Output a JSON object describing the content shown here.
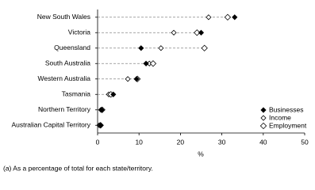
{
  "chart_data": {
    "type": "dot",
    "categories": [
      "New South Wales",
      "Victoria",
      "Queensland",
      "South Australia",
      "Western Australia",
      "Tasmania",
      "Northern Territory",
      "Australian Capital Territory"
    ],
    "series": [
      {
        "name": "Businesses",
        "color": "#000000",
        "marker": "diamond-filled",
        "values": [
          33.1,
          25,
          10.5,
          11.7,
          9.4,
          3.8,
          1,
          0.8
        ]
      },
      {
        "name": "Income",
        "color": "#000000",
        "marker": "diamond-open",
        "values": [
          26.8,
          18.4,
          15.3,
          12.5,
          7.3,
          2.7,
          0.8,
          0.4
        ]
      },
      {
        "name": "Employment",
        "color": "#000000",
        "marker": "diamond-open-large",
        "values": [
          31.4,
          24,
          25.8,
          13.4,
          9.6,
          3.2,
          1.1,
          0.7
        ]
      }
    ],
    "xlim": [
      0,
      50
    ],
    "xticks": [
      0,
      10,
      20,
      30,
      40,
      50
    ],
    "xlabel": "%",
    "footnote": "(a) As a percentage of total for each state/territory.",
    "legend": "bottom-right"
  }
}
